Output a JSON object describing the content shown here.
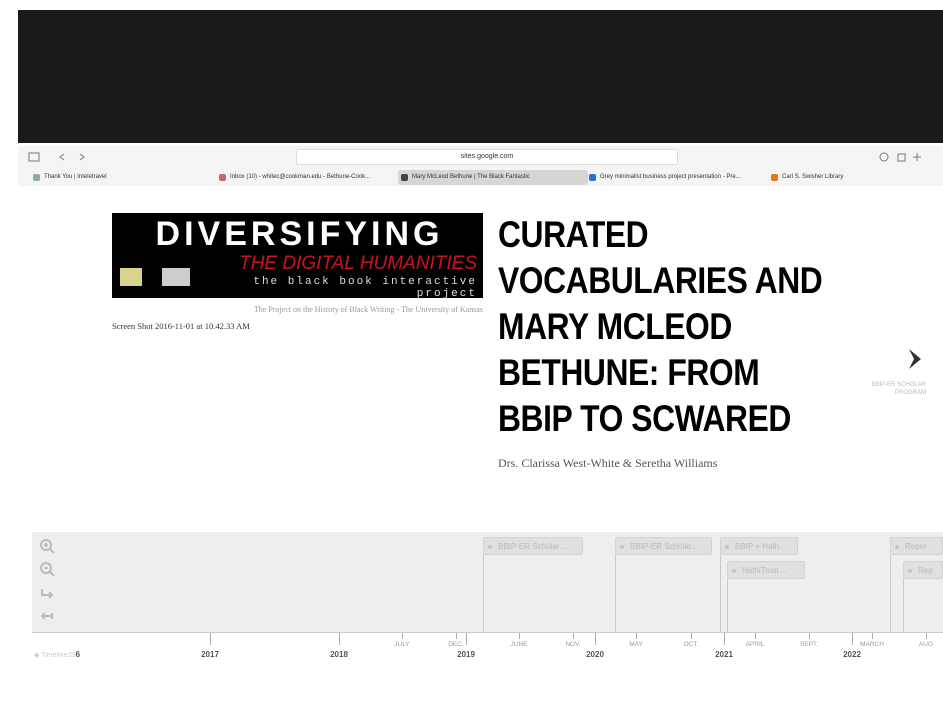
{
  "browser": {
    "url": "sites.google.com",
    "tabs": [
      "Thank You | Inteletravel",
      "Inbox (10) - whitec@cookman.edu - Bethune-Cook...",
      "Mary McLeod Bethune | The Black Fantastic",
      "Grey minimalist business project presentation - Pre...",
      "Carl S. Swisher Library"
    ]
  },
  "slide": {
    "image_title": "DIVERSIFYING",
    "image_subtitle": "THE DIGITAL HUMANITIES",
    "image_tagline": "the black book interactive project",
    "image_credit": "The Project on the History of Black Writing - The University of Kansas",
    "image_caption": "Screen Shot 2016-11-01 at 10.42.33 AM",
    "title_lines": [
      "CURATED",
      "VOCABULARIES AND",
      "MARY MCLEOD",
      "BETHUNE: FROM",
      "BBIP TO SCWARED"
    ],
    "subtitle": "Drs. Clarissa West-White & Seretha Williams",
    "next_label": "BBIP-ER SCHOLAR PROGRAM"
  },
  "timeline": {
    "branding": "TimelineJS",
    "first_year": "6",
    "markers": [
      "BBIP-ER Scholar ...",
      "BBIP-ER Scholar...",
      "BBIP + Hath...",
      "HathiTrust ...",
      "Repor",
      "Rep"
    ],
    "years": [
      "2017",
      "2018",
      "2019",
      "2020",
      "2021",
      "2022"
    ],
    "months": [
      "JULY",
      "DEC.",
      "JUNE",
      "NOV.",
      "MAY",
      "OCT.",
      "APRIL",
      "SEPT.",
      "MARCH",
      "AUG"
    ]
  }
}
